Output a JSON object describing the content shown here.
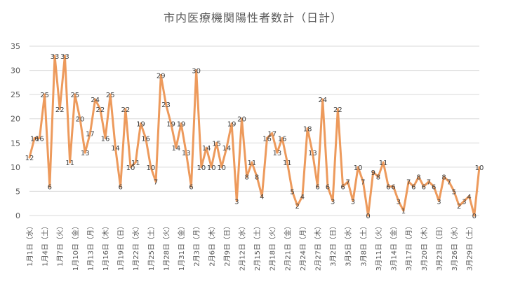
{
  "chart_data": {
    "type": "line",
    "title": "市内医療機関陽性者数計（日計）",
    "xlabel": "",
    "ylabel": "",
    "ylim": [
      0,
      35
    ],
    "yticks": [
      0,
      5,
      10,
      15,
      20,
      25,
      30,
      35
    ],
    "grid": true,
    "legend": "none",
    "line_color": "#ED9A5C",
    "grid_color": "#D9D9D9",
    "x_tick_labels": [
      "1月1日（水）",
      "1月4日（土）",
      "1月7日（火）",
      "1月10日（金）",
      "1月13日（月）",
      "1月16日（木）",
      "1月19日（日）",
      "1月22日（水）",
      "1月25日（土）",
      "1月28日（火）",
      "1月31日（金）",
      "2月3日（月）",
      "2月6日（木）",
      "2月9日（日）",
      "2月12日（水）",
      "2月15日（土）",
      "2月18日（火）",
      "2月21日（金）",
      "2月24日（月）",
      "2月27日（木）",
      "3月2日（日）",
      "3月5日（水）",
      "3月8日（土）",
      "3月11日（火）",
      "3月14日（金）",
      "3月17日（月）",
      "3月20日（木）",
      "3月23日（日）",
      "3月26日（水）",
      "3月29日（土）"
    ],
    "values": [
      12,
      16,
      16,
      25,
      6,
      33,
      22,
      33,
      11,
      25,
      20,
      13,
      17,
      24,
      22,
      16,
      25,
      14,
      6,
      22,
      10,
      11,
      19,
      16,
      10,
      7,
      29,
      23,
      19,
      14,
      19,
      13,
      6,
      30,
      10,
      14,
      10,
      15,
      10,
      14,
      19,
      3,
      20,
      8,
      11,
      8,
      4,
      16,
      17,
      13,
      16,
      11,
      5,
      2,
      4,
      18,
      13,
      6,
      24,
      6,
      3,
      22,
      6,
      7,
      3,
      10,
      7,
      0,
      9,
      8,
      11,
      6,
      6,
      3,
      1,
      7,
      6,
      8,
      6,
      7,
      6,
      3,
      8,
      7,
      5,
      2,
      3,
      4,
      0,
      10
    ]
  }
}
